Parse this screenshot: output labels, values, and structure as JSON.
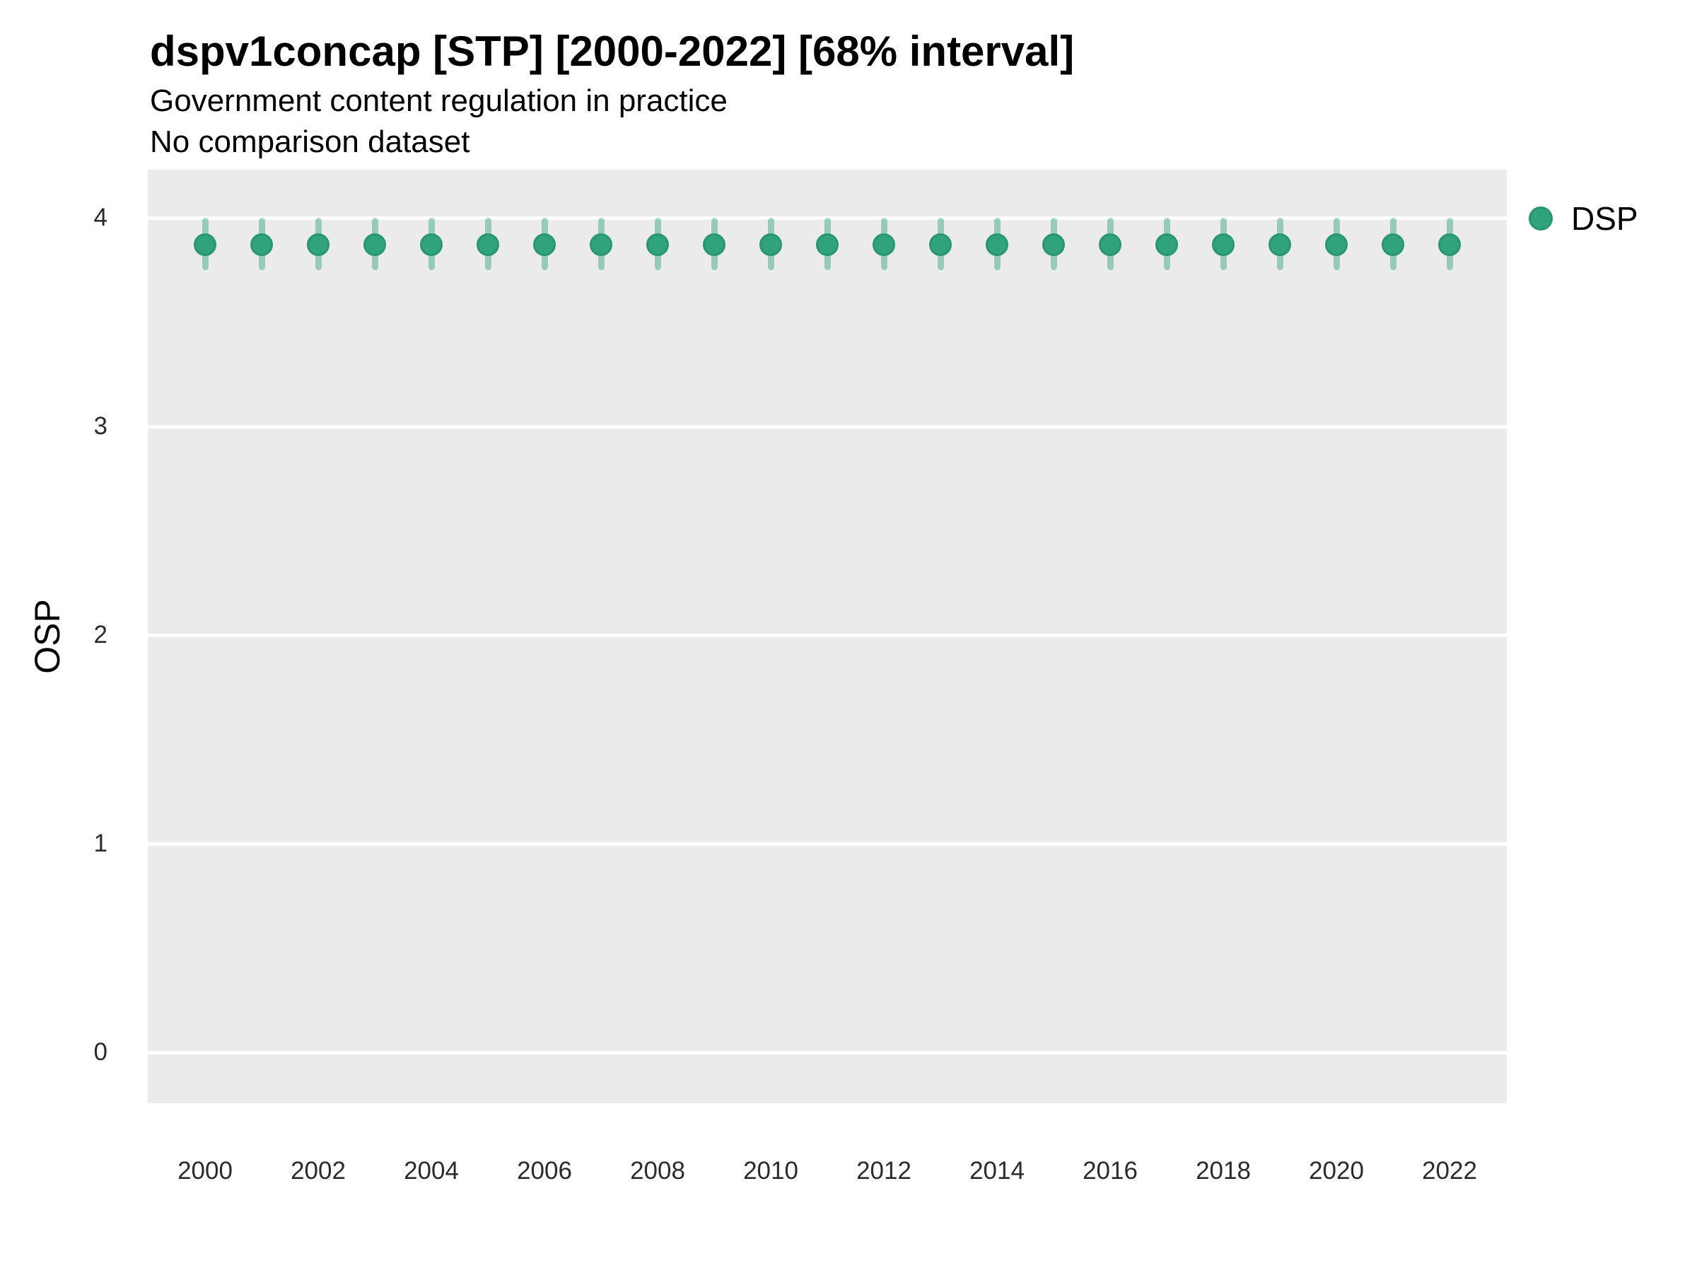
{
  "header": {
    "title": "dspv1concap [STP] [2000-2022] [68% interval]",
    "subtitle_line1": "Government content regulation in practice",
    "subtitle_line2": "No comparison dataset"
  },
  "legend": {
    "label": "DSP",
    "marker_color": "#31a27e",
    "position": "right-top"
  },
  "colors": {
    "panel_background": "#ebebeb",
    "gridline": "#ffffff",
    "point_fill": "#31a27e",
    "point_stroke": "#2a9572",
    "interval_bar": "rgba(47,163,126,0.45)",
    "text": "#000000"
  },
  "chart_data": {
    "type": "scatter",
    "title": "dspv1concap [STP] [2000-2022] [68% interval]",
    "subtitle": "Government content regulation in practice",
    "note": "No comparison dataset",
    "xlabel": "",
    "ylabel": "OSP",
    "interval_label": "68% interval",
    "grid": "horizontal-major-only",
    "legend_position": "right",
    "x": [
      2000,
      2001,
      2002,
      2003,
      2004,
      2005,
      2006,
      2007,
      2008,
      2009,
      2010,
      2011,
      2012,
      2013,
      2014,
      2015,
      2016,
      2017,
      2018,
      2019,
      2020,
      2021,
      2022
    ],
    "series": [
      {
        "name": "DSP",
        "values": [
          3.87,
          3.87,
          3.87,
          3.87,
          3.87,
          3.87,
          3.87,
          3.87,
          3.87,
          3.87,
          3.87,
          3.87,
          3.87,
          3.87,
          3.87,
          3.87,
          3.87,
          3.87,
          3.87,
          3.87,
          3.87,
          3.87,
          3.87
        ],
        "ci_low": [
          3.75,
          3.75,
          3.75,
          3.75,
          3.75,
          3.75,
          3.75,
          3.75,
          3.75,
          3.75,
          3.75,
          3.75,
          3.75,
          3.75,
          3.75,
          3.75,
          3.75,
          3.75,
          3.75,
          3.75,
          3.75,
          3.75,
          3.75
        ],
        "ci_high": [
          4.0,
          4.0,
          4.0,
          4.0,
          4.0,
          4.0,
          4.0,
          4.0,
          4.0,
          4.0,
          4.0,
          4.0,
          4.0,
          4.0,
          4.0,
          4.0,
          4.0,
          4.0,
          4.0,
          4.0,
          4.0,
          4.0,
          4.0
        ]
      }
    ],
    "x_ticks": [
      2000,
      2002,
      2004,
      2006,
      2008,
      2010,
      2012,
      2014,
      2016,
      2018,
      2020,
      2022
    ],
    "y_ticks": [
      0,
      1,
      2,
      3,
      4
    ],
    "ylim": [
      -0.24,
      4.23
    ],
    "xlim": [
      1999,
      2023
    ]
  }
}
